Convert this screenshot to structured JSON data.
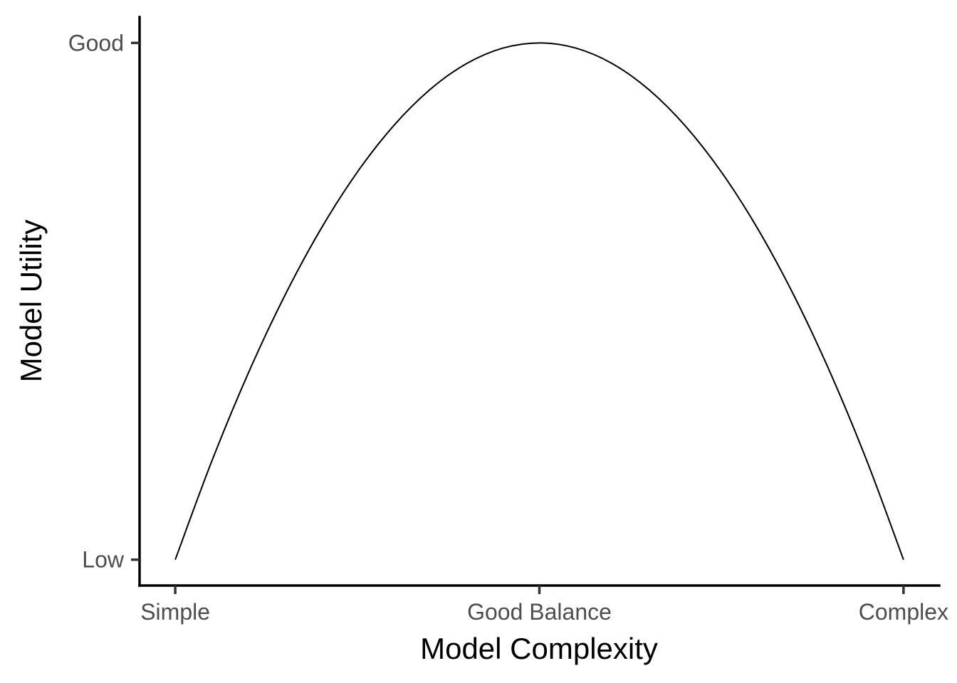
{
  "chart_data": {
    "type": "line",
    "title": "",
    "xlabel": "Model Complexity",
    "ylabel": "Model Utility",
    "x_ticks": [
      {
        "value": 0,
        "label": "Simple"
      },
      {
        "value": 0.5,
        "label": "Good Balance"
      },
      {
        "value": 1,
        "label": "Complex"
      }
    ],
    "y_ticks": [
      {
        "value": 0,
        "label": "Low"
      },
      {
        "value": 1,
        "label": "Good"
      }
    ],
    "xlim": [
      -0.049,
      1.049
    ],
    "ylim": [
      -0.05,
      1.05
    ],
    "grid": false,
    "legend": "none",
    "series": [
      {
        "x": [
          0,
          0.05,
          0.1,
          0.15,
          0.2,
          0.25,
          0.3,
          0.35,
          0.4,
          0.45,
          0.5,
          0.55,
          0.6,
          0.65,
          0.7,
          0.75,
          0.8,
          0.85,
          0.9,
          0.95,
          1
        ],
        "y": [
          0,
          0.19,
          0.36,
          0.51,
          0.64,
          0.75,
          0.84,
          0.91,
          0.96,
          0.99,
          1,
          0.99,
          0.96,
          0.91,
          0.84,
          0.75,
          0.64,
          0.51,
          0.36,
          0.19,
          0
        ],
        "color": "#000000"
      }
    ]
  }
}
